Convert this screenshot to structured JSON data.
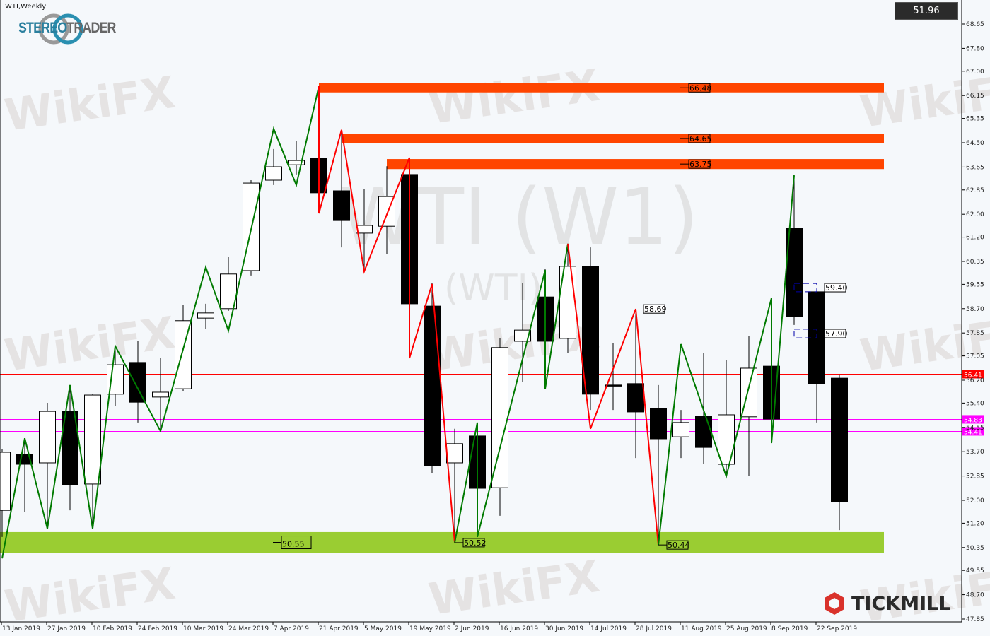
{
  "chart_title": "WTI,Weekly",
  "logos": {
    "stereotrader": "STEREOTRADER",
    "tickmill": "TICKMILL"
  },
  "watermarks": {
    "brand": "WikiFX",
    "symbol": "WTI (W1)",
    "symbol_sub": "(WTI)"
  },
  "current_price_box": "51.96",
  "colors": {
    "bull_body": "#ffffff",
    "bear_body": "#000000",
    "zigzag_up": "#007a00",
    "zigzag_down": "#ff0000",
    "resistance_zone": "#ff4500",
    "support_zone": "#9acd32",
    "red_line": "#ff0000",
    "magenta_line": "#ff00ff",
    "box_lines": "#0000aa"
  },
  "chart_data": {
    "type": "candlestick",
    "title": "WTI,Weekly",
    "ylim": [
      47.85,
      68.65
    ],
    "y_ticks": [
      "68.65",
      "67.80",
      "67.00",
      "66.15",
      "65.35",
      "64.50",
      "63.65",
      "62.85",
      "62.00",
      "61.20",
      "60.35",
      "59.55",
      "58.70",
      "57.85",
      "57.05",
      "56.20",
      "55.40",
      "54.55",
      "53.70",
      "52.85",
      "52.00",
      "51.20",
      "50.35",
      "49.55",
      "48.70",
      "47.85"
    ],
    "x_ticks": [
      "13 Jan 2019",
      "27 Jan 2019",
      "10 Feb 2019",
      "24 Feb 2019",
      "10 Mar 2019",
      "24 Mar 2019",
      "7 Apr 2019",
      "21 Apr 2019",
      "5 May 2019",
      "19 May 2019",
      "2 Jun 2019",
      "16 Jun 2019",
      "30 Jun 2019",
      "14 Jul 2019",
      "28 Jul 2019",
      "11 Aug 2019",
      "25 Aug 2019",
      "8 Sep 2019",
      "22 Sep 2019"
    ],
    "candles": [
      {
        "date": "13 Jan 2019",
        "o": 51.65,
        "h": 53.78,
        "l": 50.72,
        "c": 53.68
      },
      {
        "date": "20 Jan 2019",
        "o": 53.61,
        "h": 54.17,
        "l": 51.58,
        "c": 53.26
      },
      {
        "date": "27 Jan 2019",
        "o": 53.31,
        "h": 55.41,
        "l": 51.09,
        "c": 55.11
      },
      {
        "date": "3 Feb 2019",
        "o": 55.11,
        "h": 56.03,
        "l": 51.65,
        "c": 52.54
      },
      {
        "date": "10 Feb 2019",
        "o": 52.57,
        "h": 55.73,
        "l": 51.09,
        "c": 55.68
      },
      {
        "date": "17 Feb 2019",
        "o": 55.71,
        "h": 57.39,
        "l": 55.29,
        "c": 56.74
      },
      {
        "date": "24 Feb 2019",
        "o": 56.82,
        "h": 57.58,
        "l": 54.72,
        "c": 55.43
      },
      {
        "date": "3 Mar 2019",
        "o": 55.61,
        "h": 56.97,
        "l": 54.42,
        "c": 55.78
      },
      {
        "date": "10 Mar 2019",
        "o": 55.9,
        "h": 58.82,
        "l": 55.83,
        "c": 58.28
      },
      {
        "date": "17 Mar 2019",
        "o": 58.37,
        "h": 58.87,
        "l": 58.0,
        "c": 58.55
      },
      {
        "date": "24 Mar 2019",
        "o": 58.7,
        "h": 60.52,
        "l": 58.62,
        "c": 59.91
      },
      {
        "date": "31 Mar 2019",
        "o": 60.03,
        "h": 63.19,
        "l": 59.86,
        "c": 63.09
      },
      {
        "date": "7 Apr 2019",
        "o": 63.19,
        "h": 64.28,
        "l": 63.02,
        "c": 63.66
      },
      {
        "date": "14 Apr 2019",
        "o": 63.73,
        "h": 64.57,
        "l": 63.39,
        "c": 63.88
      },
      {
        "date": "21 Apr 2019",
        "o": 63.96,
        "h": 66.48,
        "l": 62.08,
        "c": 62.75
      },
      {
        "date": "28 Apr 2019",
        "o": 62.82,
        "h": 64.92,
        "l": 60.84,
        "c": 61.78
      },
      {
        "date": "5 May 2019",
        "o": 61.34,
        "h": 62.87,
        "l": 60.1,
        "c": 61.61
      },
      {
        "date": "12 May 2019",
        "o": 61.58,
        "h": 63.68,
        "l": 60.6,
        "c": 62.62
      },
      {
        "date": "19 May 2019",
        "o": 63.39,
        "h": 63.93,
        "l": 57.01,
        "c": 58.87
      },
      {
        "date": "26 May 2019",
        "o": 58.79,
        "h": 59.61,
        "l": 52.94,
        "c": 53.21
      },
      {
        "date": "2 Jun 2019",
        "o": 53.31,
        "h": 54.5,
        "l": 50.52,
        "c": 53.98
      },
      {
        "date": "9 Jun 2019",
        "o": 54.25,
        "h": 54.67,
        "l": 50.72,
        "c": 52.42
      },
      {
        "date": "16 Jun 2019",
        "o": 52.44,
        "h": 57.68,
        "l": 51.46,
        "c": 57.34
      },
      {
        "date": "23 Jun 2019",
        "o": 57.56,
        "h": 59.61,
        "l": 56.15,
        "c": 57.95
      },
      {
        "date": "30 Jun 2019",
        "o": 59.11,
        "h": 60.1,
        "l": 55.9,
        "c": 57.56
      },
      {
        "date": "7 Jul 2019",
        "o": 57.66,
        "h": 60.97,
        "l": 57.14,
        "c": 60.18
      },
      {
        "date": "14 Jul 2019",
        "o": 60.18,
        "h": 60.84,
        "l": 55.16,
        "c": 55.71
      },
      {
        "date": "21 Jul 2019",
        "o": 56.03,
        "h": 57.51,
        "l": 55.16,
        "c": 56.0
      },
      {
        "date": "28 Jul 2019",
        "o": 56.08,
        "h": 58.69,
        "l": 53.48,
        "c": 55.09
      },
      {
        "date": "4 Aug 2019",
        "o": 55.21,
        "h": 56.03,
        "l": 50.44,
        "c": 54.15
      },
      {
        "date": "11 Aug 2019",
        "o": 54.22,
        "h": 55.16,
        "l": 53.48,
        "c": 54.72
      },
      {
        "date": "18 Aug 2019",
        "o": 54.94,
        "h": 57.14,
        "l": 53.26,
        "c": 53.85
      },
      {
        "date": "25 Aug 2019",
        "o": 53.26,
        "h": 56.89,
        "l": 52.84,
        "c": 54.99
      },
      {
        "date": "1 Sep 2019",
        "o": 54.92,
        "h": 57.73,
        "l": 52.86,
        "c": 56.62
      },
      {
        "date": "8 Sep 2019",
        "o": 56.69,
        "h": 57.39,
        "l": 54.05,
        "c": 54.84
      },
      {
        "date": "15 Sep 2019",
        "o": 61.51,
        "h": 63.36,
        "l": 58.13,
        "c": 58.42
      },
      {
        "date": "22 Sep 2019",
        "o": 59.29,
        "h": 59.36,
        "l": 54.72,
        "c": 56.08
      },
      {
        "date": "29 Sep 2019",
        "o": 56.27,
        "h": 56.4,
        "l": 50.96,
        "c": 51.96
      }
    ],
    "zigzag": [
      {
        "color": "up",
        "points": [
          [
            "13 Jan 2019",
            49.97
          ],
          [
            "20 Jan 2019",
            54.17
          ],
          [
            "27 Jan 2019",
            51.01
          ],
          [
            "3 Feb 2019",
            56.03
          ],
          [
            "10 Feb 2019",
            51.01
          ],
          [
            "17 Feb 2019",
            57.39
          ],
          [
            "3 Mar 2019",
            54.42
          ],
          [
            "17 Mar 2019",
            60.15
          ],
          [
            "24 Mar 2019",
            57.93
          ],
          [
            "7 Apr 2019",
            64.99
          ],
          [
            "14 Apr 2019",
            63.02
          ],
          [
            "21 Apr 2019",
            66.48
          ]
        ]
      },
      {
        "color": "down",
        "points": [
          [
            "21 Apr 2019",
            66.48
          ],
          [
            "21 Apr 2019",
            62.03
          ],
          [
            "28 Apr 2019",
            64.95
          ],
          [
            "5 May 2019",
            60.0
          ],
          [
            "19 May 2019",
            63.98
          ],
          [
            "19 May 2019",
            56.97
          ],
          [
            "26 May 2019",
            59.56
          ],
          [
            "2 Jun 2019",
            50.52
          ]
        ]
      },
      {
        "color": "up",
        "points": [
          [
            "2 Jun 2019",
            50.52
          ],
          [
            "9 Jun 2019",
            54.72
          ],
          [
            "9 Jun 2019",
            50.72
          ],
          [
            "30 Jun 2019",
            60.05
          ],
          [
            "30 Jun 2019",
            55.9
          ],
          [
            "7 Jul 2019",
            60.97
          ]
        ]
      },
      {
        "color": "down",
        "points": [
          [
            "7 Jul 2019",
            60.97
          ],
          [
            "14 Jul 2019",
            54.5
          ],
          [
            "28 Jul 2019",
            58.69
          ],
          [
            "4 Aug 2019",
            50.44
          ]
        ]
      },
      {
        "color": "up",
        "points": [
          [
            "4 Aug 2019",
            50.44
          ],
          [
            "11 Aug 2019",
            57.46
          ],
          [
            "25 Aug 2019",
            52.84
          ],
          [
            "8 Sep 2019",
            59.07
          ],
          [
            "8 Sep 2019",
            54.0
          ],
          [
            "15 Sep 2019",
            63.36
          ]
        ]
      }
    ],
    "resistance_zones": [
      {
        "label": "66.48",
        "from": "21 Apr 2019",
        "top": 66.58,
        "bottom": 66.26
      },
      {
        "label": "64.65",
        "from": "28 Apr 2019",
        "top": 64.82,
        "bottom": 64.48
      },
      {
        "label": "63.75",
        "from": "12 May 2019",
        "top": 63.93,
        "bottom": 63.58
      }
    ],
    "support_zone": {
      "label": "50.55",
      "top": 50.89,
      "bottom": 50.17
    },
    "support_labels": [
      {
        "label": "50.52",
        "date": "2 Jun 2019"
      },
      {
        "label": "50.44",
        "date": "4 Aug 2019"
      }
    ],
    "peak_label": {
      "label": "58.69",
      "date": "28 Jul 2019"
    },
    "box_levels": [
      {
        "label": "59.40",
        "from": "15 Sep 2019",
        "to": "22 Sep 2019",
        "top": 59.58,
        "bottom": 59.29
      },
      {
        "label": "57.90",
        "from": "15 Sep 2019",
        "to": "22 Sep 2019",
        "top": 57.98,
        "bottom": 57.68
      }
    ],
    "horizontal_lines": [
      {
        "label": "56.41",
        "value": 56.41,
        "color": "red"
      },
      {
        "label": "54.83",
        "value": 54.83,
        "color": "magenta"
      },
      {
        "label": "54.41",
        "value": 54.41,
        "color": "magenta"
      }
    ]
  }
}
